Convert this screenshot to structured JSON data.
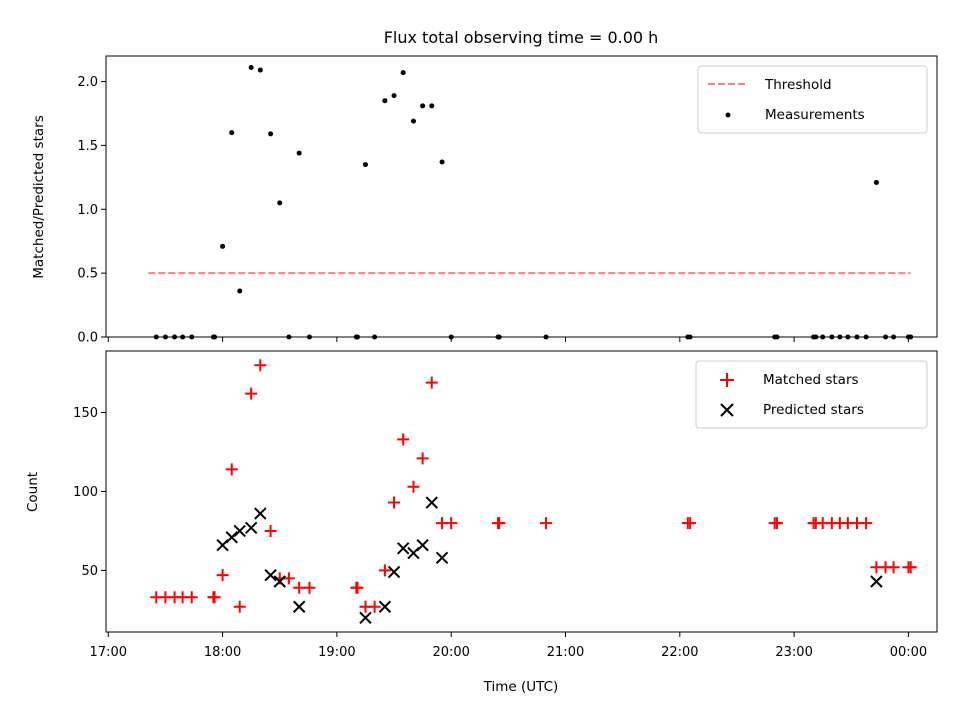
{
  "chart_data": {
    "title": "Flux total observing time = 0.00 h",
    "xlabel": "Time (UTC)",
    "x_ticks": [
      "17:00",
      "18:00",
      "19:00",
      "20:00",
      "21:00",
      "22:00",
      "23:00",
      "00:00"
    ],
    "x_unit": "hours (UTC, continuing past midnight)",
    "xlim": [
      16.98,
      24.25
    ],
    "panels": [
      {
        "type": "scatter",
        "ylabel": "Matched/Predicted stars",
        "ylim": [
          0,
          2.2
        ],
        "y_ticks": [
          "0.0",
          "0.5",
          "1.0",
          "1.5",
          "2.0"
        ],
        "legend_position": "upper right",
        "series": [
          {
            "name": "Threshold",
            "kind": "dashed-line",
            "color": "#ff7f7f",
            "points": [
              [
                17.35,
                0.5
              ],
              [
                24.02,
                0.5
              ]
            ]
          },
          {
            "name": "Measurements",
            "kind": "dot",
            "color": "#000000",
            "points": [
              [
                17.42,
                0.0
              ],
              [
                17.5,
                0.0
              ],
              [
                17.58,
                0.0
              ],
              [
                17.65,
                0.0
              ],
              [
                17.73,
                0.0
              ],
              [
                17.92,
                0.0
              ],
              [
                17.93,
                0.0
              ],
              [
                18.0,
                0.71
              ],
              [
                18.08,
                1.6
              ],
              [
                18.15,
                0.36
              ],
              [
                18.25,
                2.11
              ],
              [
                18.33,
                2.09
              ],
              [
                18.42,
                1.59
              ],
              [
                18.5,
                1.05
              ],
              [
                18.58,
                0.0
              ],
              [
                18.67,
                1.44
              ],
              [
                18.76,
                0.0
              ],
              [
                19.17,
                0.0
              ],
              [
                19.18,
                0.0
              ],
              [
                19.25,
                1.35
              ],
              [
                19.33,
                0.0
              ],
              [
                19.42,
                1.85
              ],
              [
                19.5,
                1.89
              ],
              [
                19.58,
                2.07
              ],
              [
                19.67,
                1.69
              ],
              [
                19.75,
                1.81
              ],
              [
                19.83,
                1.81
              ],
              [
                19.92,
                1.37
              ],
              [
                20.0,
                0.0
              ],
              [
                20.41,
                0.0
              ],
              [
                20.42,
                0.0
              ],
              [
                20.83,
                0.0
              ],
              [
                22.07,
                0.0
              ],
              [
                22.09,
                0.0
              ],
              [
                22.83,
                0.0
              ],
              [
                22.85,
                0.0
              ],
              [
                23.17,
                0.0
              ],
              [
                23.19,
                0.0
              ],
              [
                23.25,
                0.0
              ],
              [
                23.33,
                0.0
              ],
              [
                23.4,
                0.0
              ],
              [
                23.47,
                0.0
              ],
              [
                23.55,
                0.0
              ],
              [
                23.63,
                0.0
              ],
              [
                23.72,
                1.21
              ],
              [
                23.8,
                0.0
              ],
              [
                23.87,
                0.0
              ],
              [
                24.0,
                0.0
              ],
              [
                24.02,
                0.0
              ]
            ]
          }
        ]
      },
      {
        "type": "scatter",
        "ylabel": "Count",
        "ylim": [
          11,
          189
        ],
        "y_ticks": [
          "50",
          "100",
          "150"
        ],
        "legend_position": "upper right",
        "series": [
          {
            "name": "Matched stars",
            "marker": "plus",
            "color": "#ff0000",
            "points": [
              [
                17.42,
                33
              ],
              [
                17.5,
                33
              ],
              [
                17.58,
                33
              ],
              [
                17.65,
                33
              ],
              [
                17.73,
                33
              ],
              [
                17.92,
                33
              ],
              [
                17.93,
                33
              ],
              [
                18.0,
                47
              ],
              [
                18.08,
                114
              ],
              [
                18.15,
                27
              ],
              [
                18.25,
                162
              ],
              [
                18.33,
                180
              ],
              [
                18.42,
                75
              ],
              [
                18.5,
                45
              ],
              [
                18.58,
                45
              ],
              [
                18.67,
                39
              ],
              [
                18.76,
                39
              ],
              [
                19.17,
                39
              ],
              [
                19.18,
                39
              ],
              [
                19.25,
                27
              ],
              [
                19.33,
                27
              ],
              [
                19.42,
                50
              ],
              [
                19.5,
                93
              ],
              [
                19.58,
                133
              ],
              [
                19.67,
                103
              ],
              [
                19.75,
                121
              ],
              [
                19.83,
                169
              ],
              [
                19.92,
                80
              ],
              [
                20.0,
                80
              ],
              [
                20.41,
                80
              ],
              [
                20.42,
                80
              ],
              [
                20.83,
                80
              ],
              [
                22.07,
                80
              ],
              [
                22.09,
                80
              ],
              [
                22.83,
                80
              ],
              [
                22.85,
                80
              ],
              [
                23.17,
                80
              ],
              [
                23.19,
                80
              ],
              [
                23.25,
                80
              ],
              [
                23.33,
                80
              ],
              [
                23.4,
                80
              ],
              [
                23.47,
                80
              ],
              [
                23.55,
                80
              ],
              [
                23.63,
                80
              ],
              [
                23.72,
                52
              ],
              [
                23.8,
                52
              ],
              [
                23.87,
                52
              ],
              [
                24.0,
                52
              ],
              [
                24.02,
                52
              ]
            ]
          },
          {
            "name": "Predicted stars",
            "marker": "x",
            "color": "#000000",
            "points": [
              [
                18.0,
                66
              ],
              [
                18.08,
                71
              ],
              [
                18.15,
                75
              ],
              [
                18.25,
                77
              ],
              [
                18.33,
                86
              ],
              [
                18.42,
                47
              ],
              [
                18.5,
                43
              ],
              [
                18.67,
                27
              ],
              [
                19.25,
                20
              ],
              [
                19.42,
                27
              ],
              [
                19.5,
                49
              ],
              [
                19.58,
                64
              ],
              [
                19.67,
                61
              ],
              [
                19.75,
                66
              ],
              [
                19.83,
                93
              ],
              [
                19.92,
                58
              ],
              [
                23.72,
                43
              ]
            ]
          }
        ]
      }
    ]
  }
}
